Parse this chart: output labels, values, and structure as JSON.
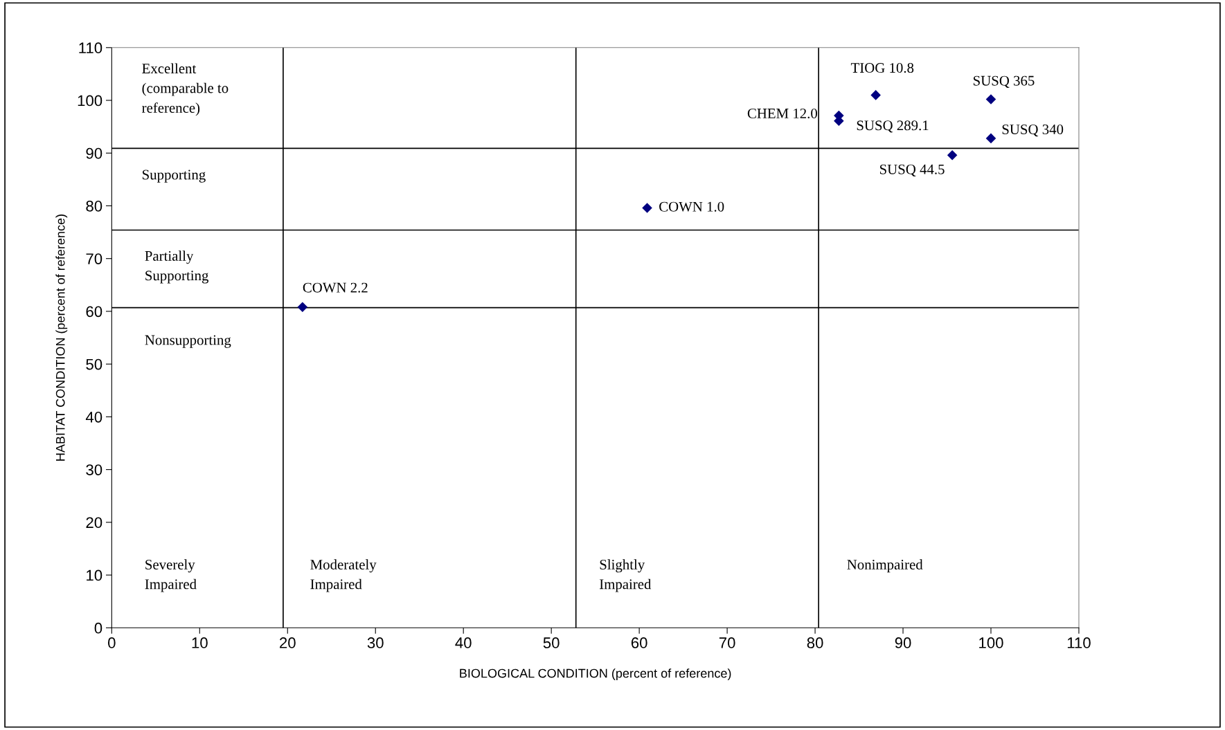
{
  "chart_data": {
    "type": "scatter",
    "xlabel": "BIOLOGICAL CONDITION (percent of reference)",
    "ylabel": "HABITAT CONDITION (percent of reference)",
    "x": [
      21.7,
      60.9,
      82.7,
      82.7,
      86.9,
      100.0,
      100.0,
      95.6
    ],
    "values": [
      60.8,
      79.6,
      97.1,
      96.1,
      101.0,
      100.2,
      92.8,
      89.6
    ],
    "color": "#000080",
    "marker": "diamond",
    "grid": false,
    "legend": false,
    "xlim": [
      0,
      110
    ],
    "ylim": [
      0,
      110
    ],
    "xticks": [
      0,
      10,
      20,
      30,
      40,
      50,
      60,
      70,
      80,
      90,
      100,
      110
    ],
    "yticks": [
      0,
      10,
      20,
      30,
      40,
      50,
      60,
      70,
      80,
      90,
      100,
      110
    ],
    "ref_lines": [
      {
        "axis": "x",
        "value": 19.5,
        "color": "#000000"
      },
      {
        "axis": "x",
        "value": 52.8,
        "color": "#000000"
      },
      {
        "axis": "x",
        "value": 80.4,
        "color": "#000000"
      },
      {
        "axis": "y",
        "value": 90.9,
        "color": "#000000"
      },
      {
        "axis": "y",
        "value": 75.4,
        "color": "#000000"
      },
      {
        "axis": "y",
        "value": 60.7,
        "color": "#000000"
      }
    ],
    "annotations": [
      {
        "text": "COWN 2.2",
        "x": 21.7,
        "y": 60.8
      },
      {
        "text": "COWN 1.0",
        "x": 60.9,
        "y": 79.6
      },
      {
        "text": "CHEM 12.0",
        "x": 82.7,
        "y": 97.1
      },
      {
        "text": "SUSQ 289.1",
        "x": 82.7,
        "y": 96.1
      },
      {
        "text": "TIOG 10.8",
        "x": 86.9,
        "y": 101.0
      },
      {
        "text": "SUSQ 365",
        "x": 100.0,
        "y": 100.2
      },
      {
        "text": "SUSQ 340",
        "x": 100.0,
        "y": 92.8
      },
      {
        "text": "SUSQ 44.5",
        "x": 95.6,
        "y": 89.6
      },
      "Excellent\n(comparable to\nreference)",
      "Supporting",
      "Partially\nSupporting",
      "Nonsupporting",
      "Severely\nImpaired",
      "Moderately\nImpaired",
      "Slightly\nImpaired",
      "Nonimpaired"
    ]
  }
}
